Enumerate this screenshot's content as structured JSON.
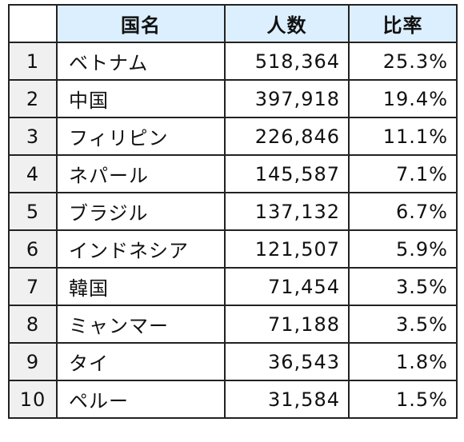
{
  "headers": {
    "rank": "",
    "country": "国名",
    "population": "人数",
    "ratio": "比率"
  },
  "rows": [
    {
      "rank": "1",
      "country": "ベトナム",
      "population": "518,364",
      "ratio": "25.3%"
    },
    {
      "rank": "2",
      "country": "中国",
      "population": "397,918",
      "ratio": "19.4%"
    },
    {
      "rank": "3",
      "country": "フィリピン",
      "population": "226,846",
      "ratio": "11.1%"
    },
    {
      "rank": "4",
      "country": "ネパール",
      "population": "145,587",
      "ratio": "7.1%"
    },
    {
      "rank": "5",
      "country": "ブラジル",
      "population": "137,132",
      "ratio": "6.7%"
    },
    {
      "rank": "6",
      "country": "インドネシア",
      "population": "121,507",
      "ratio": "5.9%"
    },
    {
      "rank": "7",
      "country": "韓国",
      "population": "71,454",
      "ratio": "3.5%"
    },
    {
      "rank": "8",
      "country": "ミャンマー",
      "population": "71,188",
      "ratio": "3.5%"
    },
    {
      "rank": "9",
      "country": "タイ",
      "population": "36,543",
      "ratio": "1.8%"
    },
    {
      "rank": "10",
      "country": "ペルー",
      "population": "31,584",
      "ratio": "1.5%"
    }
  ],
  "colors": {
    "header_bg": "#dcefff",
    "rank_bg": "#f0f0f0",
    "border": "#222222"
  }
}
